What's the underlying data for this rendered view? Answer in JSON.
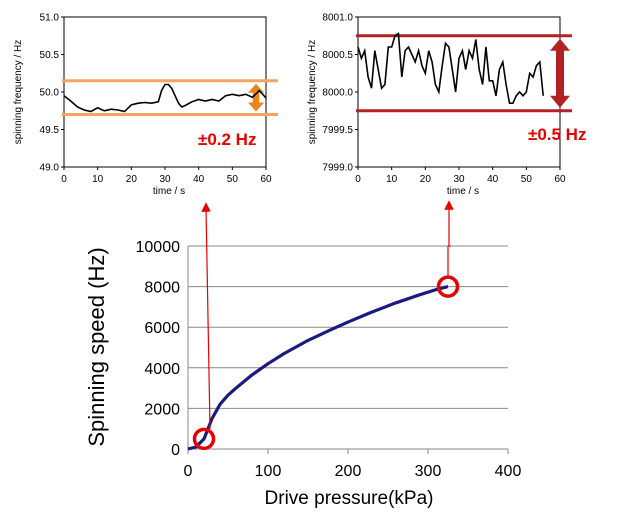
{
  "colors": {
    "orange": "#f4a460",
    "orange_arrow": "#e8861a",
    "darkred": "#b22222",
    "red": "#e60000",
    "navy": "#1a1a80",
    "grid": "#888888"
  },
  "chart_data": [
    {
      "id": "left_inset",
      "type": "line",
      "title": "",
      "xlabel": "time / s",
      "ylabel": "spinning frequency / Hz",
      "xlim": [
        0,
        60
      ],
      "ylim": [
        49.0,
        51.0
      ],
      "xticks": [
        "0",
        "10",
        "20",
        "30",
        "40",
        "50",
        "60"
      ],
      "yticks": [
        "49.0",
        "49.5",
        "50.0",
        "50.5",
        "51.0"
      ],
      "band": [
        49.7,
        50.15
      ],
      "tolerance_label": "±0.2 Hz",
      "series": [
        {
          "name": "spinning frequency",
          "x": [
            0,
            2,
            4,
            6,
            8,
            10,
            12,
            14,
            16,
            18,
            20,
            22,
            24,
            26,
            28,
            29,
            30,
            31,
            32,
            33,
            34,
            35,
            36,
            38,
            40,
            42,
            44,
            46,
            48,
            50,
            52,
            54,
            56,
            58,
            60
          ],
          "y": [
            49.95,
            49.88,
            49.8,
            49.76,
            49.74,
            49.79,
            49.75,
            49.77,
            49.76,
            49.74,
            49.83,
            49.85,
            49.86,
            49.85,
            49.87,
            50.02,
            50.1,
            50.1,
            50.05,
            49.95,
            49.85,
            49.8,
            49.82,
            49.87,
            49.9,
            49.88,
            49.9,
            49.88,
            49.95,
            49.97,
            49.95,
            49.97,
            49.93,
            50.02,
            49.92
          ]
        }
      ]
    },
    {
      "id": "right_inset",
      "type": "line",
      "title": "",
      "xlabel": "time / s",
      "ylabel": "spinning frequency / Hz",
      "xlim": [
        0,
        60
      ],
      "ylim": [
        7999.0,
        8001.0
      ],
      "xticks": [
        "0",
        "10",
        "20",
        "30",
        "40",
        "50",
        "60"
      ],
      "yticks": [
        "7999.0",
        "7999.5",
        "8000.0",
        "8000.5",
        "8001.0"
      ],
      "band": [
        7999.75,
        8000.75
      ],
      "tolerance_label": "±0.5 Hz",
      "series": [
        {
          "name": "spinning frequency",
          "x": [
            0,
            1,
            2,
            3,
            4,
            5,
            6,
            7,
            8,
            9,
            10,
            11,
            12,
            13,
            14,
            15,
            16,
            17,
            18,
            19,
            20,
            21,
            22,
            23,
            24,
            25,
            26,
            27,
            28,
            29,
            30,
            31,
            32,
            33,
            34,
            35,
            36,
            37,
            38,
            39,
            40,
            41,
            42,
            43,
            44,
            45,
            46,
            47,
            48,
            49,
            50,
            51,
            52,
            53,
            54,
            55
          ],
          "y": [
            8000.6,
            8000.45,
            8000.55,
            8000.2,
            8000.05,
            8000.55,
            8000.3,
            8000.05,
            8000.1,
            8000.6,
            8000.6,
            8000.75,
            8000.78,
            8000.2,
            8000.55,
            8000.6,
            8000.5,
            8000.4,
            8000.55,
            8000.35,
            8000.25,
            8000.55,
            8000.4,
            8000.1,
            8000.0,
            8000.35,
            8000.65,
            8000.6,
            8000.3,
            8000.0,
            8000.45,
            8000.55,
            8000.3,
            8000.55,
            8000.45,
            8000.7,
            8000.3,
            8000.1,
            8000.6,
            8000.15,
            8000.15,
            7999.95,
            8000.3,
            8000.4,
            8000.1,
            7999.85,
            7999.85,
            7999.95,
            8000.0,
            7999.95,
            8000.0,
            8000.25,
            8000.2,
            8000.35,
            8000.4,
            7999.95
          ]
        }
      ]
    },
    {
      "id": "main",
      "type": "line",
      "title": "",
      "xlabel": "Drive pressure(kPa)",
      "ylabel": "Spinning speed (Hz)",
      "xlim": [
        0,
        400
      ],
      "ylim": [
        0,
        10000
      ],
      "xticks": [
        "0",
        "100",
        "200",
        "300",
        "400"
      ],
      "yticks": [
        "0",
        "2000",
        "4000",
        "6000",
        "8000",
        "10000"
      ],
      "grid": true,
      "series": [
        {
          "name": "spinning speed",
          "x": [
            0,
            10,
            20,
            30,
            40,
            50,
            60,
            80,
            100,
            120,
            150,
            180,
            200,
            230,
            260,
            290,
            310,
            320,
            325
          ],
          "y": [
            0,
            100,
            500,
            1500,
            2200,
            2650,
            3000,
            3650,
            4200,
            4700,
            5350,
            5900,
            6250,
            6750,
            7200,
            7600,
            7850,
            7950,
            8000
          ]
        }
      ],
      "highlights": [
        {
          "x": 20,
          "y": 500
        },
        {
          "x": 325,
          "y": 8000
        }
      ]
    }
  ]
}
